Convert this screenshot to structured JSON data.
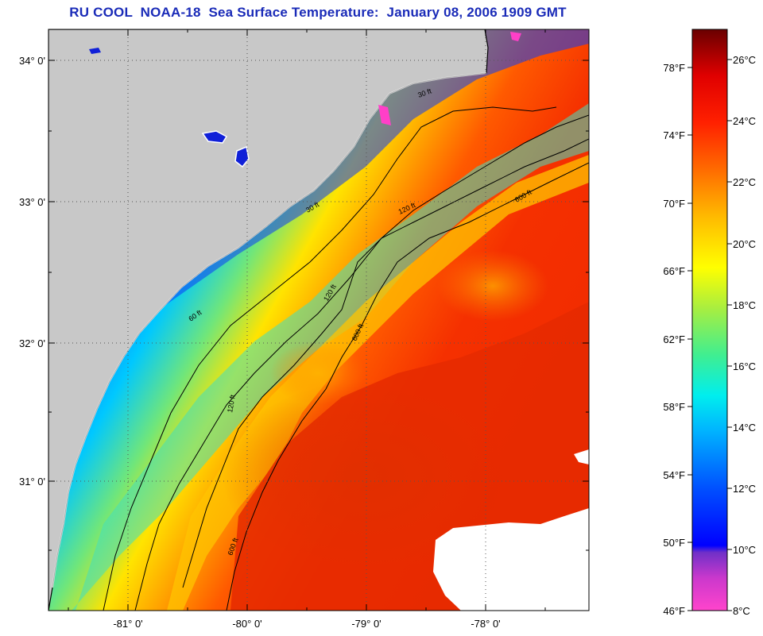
{
  "title": "RU COOL  NOAA-18  Sea Surface Temperature:  January 08, 2006 1909 GMT",
  "map": {
    "lat_labels": [
      "34° 0'",
      "33° 0'",
      "32° 0'",
      "31° 0'"
    ],
    "lon_labels": [
      "-81° 0'",
      "-80° 0'",
      "-79° 0'",
      "-78° 0'"
    ],
    "contour_labels": [
      "30 ft",
      "60 ft",
      "120 ft",
      "600 ft"
    ],
    "land_color": "#c8c8c8",
    "cloud_color": "#ffffff"
  },
  "colorbar": {
    "fahrenheit_labels": [
      "78°F",
      "74°F",
      "70°F",
      "66°F",
      "62°F",
      "58°F",
      "54°F",
      "50°F",
      "46°F"
    ],
    "celsius_labels": [
      "26°C",
      "24°C",
      "22°C",
      "20°C",
      "18°C",
      "16°C",
      "14°C",
      "12°C",
      "10°C",
      "8°C"
    ],
    "range_c": [
      8,
      27.5
    ],
    "colors": [
      "#ff44cc",
      "#8833cc",
      "#0000ff",
      "#0066ff",
      "#00ddff",
      "#66ee66",
      "#ffff00",
      "#ffaa00",
      "#ff3300",
      "#ee0000",
      "#660000"
    ]
  }
}
